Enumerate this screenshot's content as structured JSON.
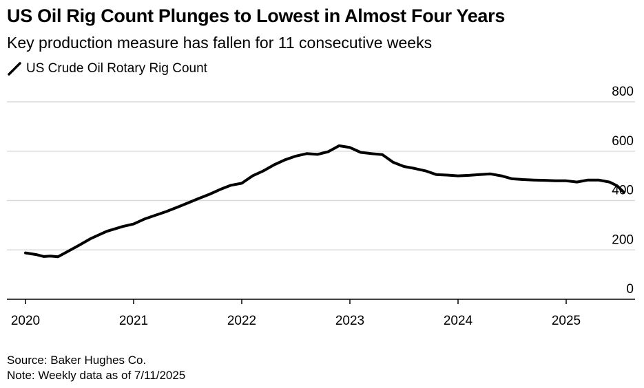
{
  "chart_data": {
    "type": "line",
    "title": "US Oil Rig Count Plunges to Lowest in Almost Four Years",
    "subtitle": "Key production measure has fallen for 11 consecutive weeks",
    "ylabel": "",
    "xlabel": "",
    "ylim": [
      0,
      800
    ],
    "yticks": [
      "800",
      "600",
      "400",
      "200",
      "0"
    ],
    "ytick_values": [
      800,
      600,
      400,
      200,
      0
    ],
    "xticks": [
      "2020",
      "2021",
      "2022",
      "2023",
      "2024",
      "2025"
    ],
    "xtick_values": [
      2020,
      2021,
      2022,
      2023,
      2024,
      2025
    ],
    "xlim": [
      2019.9,
      2025.9
    ],
    "series": [
      {
        "name": "US Crude Oil Rotary Rig Count",
        "color": "#000000",
        "x": [
          2020.0,
          2020.1,
          2020.17,
          2020.23,
          2020.3,
          2020.4,
          2020.5,
          2020.6,
          2020.75,
          2020.9,
          2021.0,
          2021.1,
          2021.2,
          2021.3,
          2021.4,
          2021.5,
          2021.6,
          2021.7,
          2021.8,
          2021.9,
          2022.0,
          2022.1,
          2022.2,
          2022.3,
          2022.4,
          2022.5,
          2022.6,
          2022.7,
          2022.8,
          2022.9,
          2023.0,
          2023.1,
          2023.2,
          2023.3,
          2023.4,
          2023.5,
          2023.6,
          2023.7,
          2023.8,
          2023.9,
          2024.0,
          2024.1,
          2024.2,
          2024.3,
          2024.4,
          2024.5,
          2024.6,
          2024.7,
          2024.8,
          2024.9,
          2025.0,
          2025.1,
          2025.2,
          2025.3,
          2025.4,
          2025.47,
          2025.53
        ],
        "values": [
          188,
          181,
          173,
          175,
          172,
          196,
          220,
          245,
          275,
          295,
          305,
          325,
          340,
          355,
          372,
          390,
          408,
          425,
          445,
          462,
          470,
          500,
          520,
          545,
          565,
          580,
          590,
          587,
          598,
          622,
          615,
          595,
          590,
          586,
          555,
          538,
          530,
          520,
          505,
          503,
          500,
          502,
          505,
          508,
          500,
          488,
          485,
          483,
          482,
          480,
          480,
          475,
          483,
          483,
          475,
          460,
          435
        ]
      }
    ],
    "source": "Source: Baker Hughes Co.",
    "note": "Note: Weekly data as of 7/11/2025"
  },
  "legend": {
    "label": "US Crude Oil Rotary Rig Count",
    "icon": "slash-line-icon"
  },
  "colors": {
    "line": "#000000",
    "grid": "#d9d9d9",
    "axis": "#000000"
  }
}
